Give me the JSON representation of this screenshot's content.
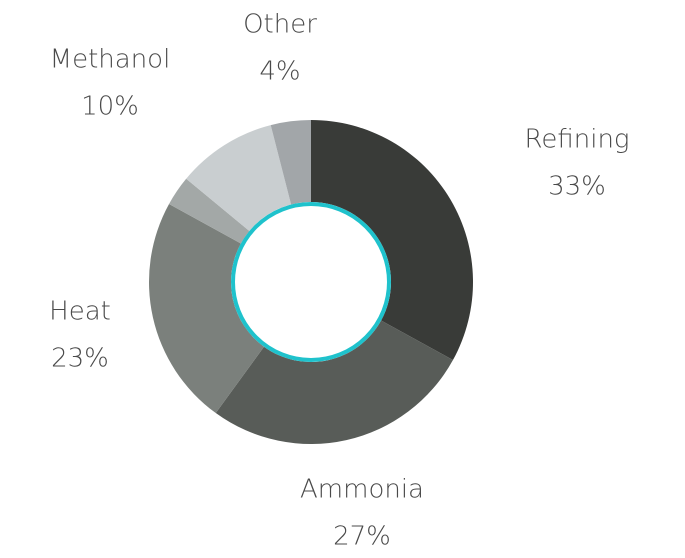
{
  "chart_data": {
    "type": "donut",
    "categories": [
      "Refining",
      "Ammonia",
      "Heat",
      null,
      "Methanol",
      "Other"
    ],
    "values": [
      33,
      27,
      23,
      3,
      10,
      4
    ],
    "value_labels": [
      "33%",
      "27%",
      "23%",
      null,
      "10%",
      "4%"
    ],
    "colors": [
      "#393b38",
      "#585c58",
      "#7b807c",
      "#a3a8a7",
      "#c9ced0",
      "#a2a6a9"
    ],
    "hole_ring_color": "#1fc2cc"
  }
}
